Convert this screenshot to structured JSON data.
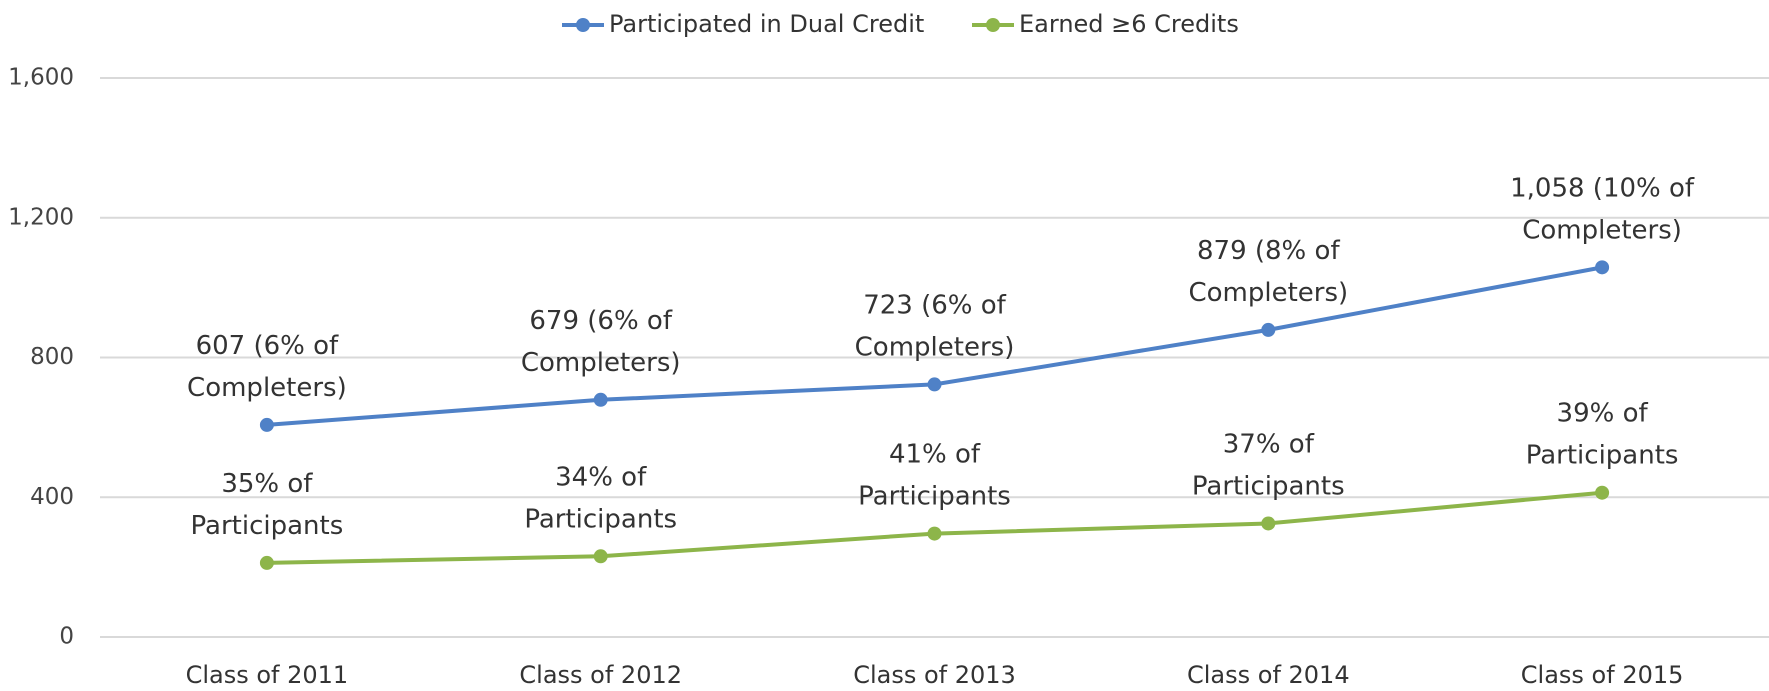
{
  "chart_data": {
    "type": "line",
    "categories": [
      "Class of 2011",
      "Class of 2012",
      "Class of 2013",
      "Class of 2014",
      "Class of 2015"
    ],
    "series": [
      {
        "name": "Participated in Dual Credit",
        "color": "#4f81c7",
        "values": [
          607,
          679,
          723,
          879,
          1058
        ],
        "value_labels": [
          "607 (6% of Completers)",
          "679 (6% of Completers)",
          "723 (6% of Completers)",
          "879 (8% of Completers)",
          "1,058 (10% of Completers)"
        ]
      },
      {
        "name": "Earned ≥6 Credits",
        "color": "#8db54a",
        "values": [
          212,
          231,
          296,
          325,
          413
        ],
        "value_labels": [
          "35% of Participants",
          "34% of Participants",
          "41% of Participants",
          "37% of Participants",
          "39% of Participants"
        ]
      }
    ],
    "ylim": [
      0,
      1600
    ],
    "yticks": [
      0,
      400,
      800,
      {
        "value": 1200,
        "label": "1,200"
      },
      {
        "value": 1600,
        "label": "1,600"
      }
    ],
    "grid": true,
    "legend": "top"
  }
}
